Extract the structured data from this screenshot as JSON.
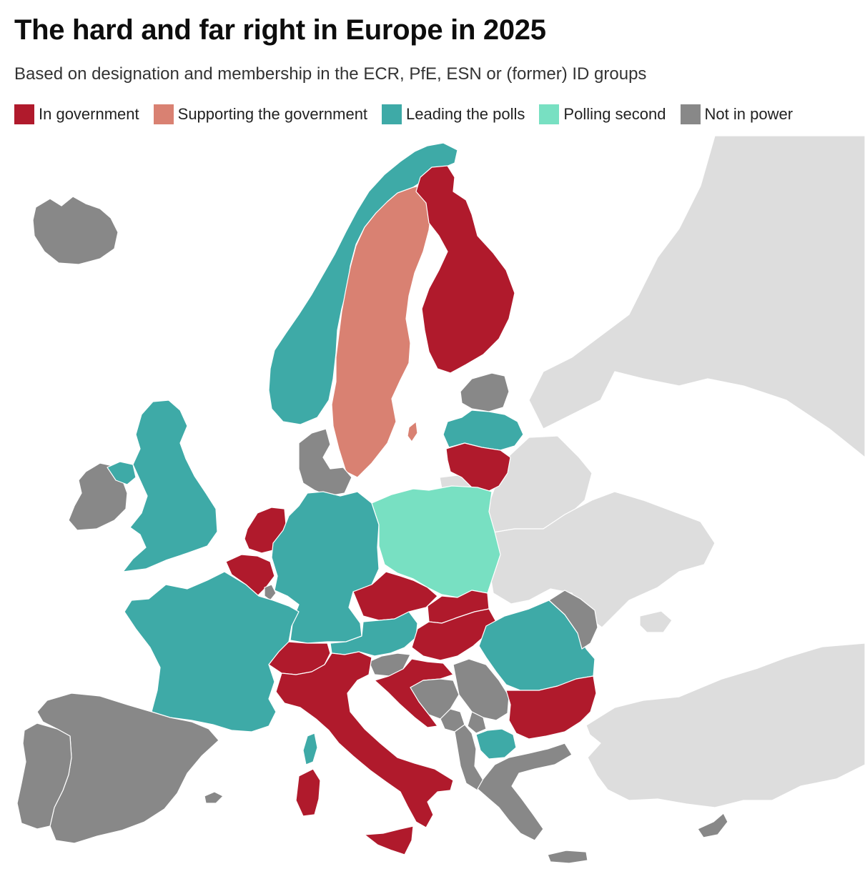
{
  "title": "The hard and far right in Europe in 2025",
  "subtitle": "Based on designation and membership in the ECR, PfE, ESN or (former) ID groups",
  "colors": {
    "in_government": "#B01A2C",
    "supporting_government": "#D98172",
    "leading_polls": "#3EAAA7",
    "polling_second": "#78E0C2",
    "not_in_power": "#888888",
    "non_eu": "#DDDDDD"
  },
  "legend": [
    {
      "key": "in_government",
      "label": "In government"
    },
    {
      "key": "supporting_government",
      "label": "Supporting the government"
    },
    {
      "key": "leading_polls",
      "label": "Leading the polls"
    },
    {
      "key": "polling_second",
      "label": "Polling second"
    },
    {
      "key": "not_in_power",
      "label": "Not in power"
    }
  ],
  "countries": [
    {
      "id": "iceland",
      "status": "not_in_power"
    },
    {
      "id": "ireland",
      "status": "not_in_power"
    },
    {
      "id": "northern-ireland",
      "status": "leading_polls"
    },
    {
      "id": "great-britain",
      "status": "leading_polls"
    },
    {
      "id": "norway",
      "status": "leading_polls"
    },
    {
      "id": "sweden",
      "status": "supporting_government"
    },
    {
      "id": "gotland",
      "status": "supporting_government"
    },
    {
      "id": "finland",
      "status": "in_government"
    },
    {
      "id": "estonia",
      "status": "not_in_power"
    },
    {
      "id": "latvia",
      "status": "leading_polls"
    },
    {
      "id": "lithuania",
      "status": "in_government"
    },
    {
      "id": "denmark",
      "status": "not_in_power"
    },
    {
      "id": "netherlands",
      "status": "in_government"
    },
    {
      "id": "belgium",
      "status": "in_government"
    },
    {
      "id": "luxembourg",
      "status": "not_in_power"
    },
    {
      "id": "germany",
      "status": "leading_polls"
    },
    {
      "id": "poland",
      "status": "polling_second"
    },
    {
      "id": "france",
      "status": "leading_polls"
    },
    {
      "id": "corsica",
      "status": "leading_polls"
    },
    {
      "id": "spain",
      "status": "not_in_power"
    },
    {
      "id": "portugal",
      "status": "not_in_power"
    },
    {
      "id": "switzerland",
      "status": "in_government"
    },
    {
      "id": "italy",
      "status": "in_government"
    },
    {
      "id": "sardinia",
      "status": "in_government"
    },
    {
      "id": "sicily",
      "status": "in_government"
    },
    {
      "id": "austria",
      "status": "leading_polls"
    },
    {
      "id": "czechia",
      "status": "in_government"
    },
    {
      "id": "slovakia",
      "status": "in_government"
    },
    {
      "id": "hungary",
      "status": "in_government"
    },
    {
      "id": "slovenia",
      "status": "not_in_power"
    },
    {
      "id": "croatia",
      "status": "in_government"
    },
    {
      "id": "bosnia",
      "status": "not_in_power"
    },
    {
      "id": "serbia",
      "status": "not_in_power"
    },
    {
      "id": "montenegro",
      "status": "not_in_power"
    },
    {
      "id": "albania",
      "status": "not_in_power"
    },
    {
      "id": "north-macedonia",
      "status": "leading_polls"
    },
    {
      "id": "kosovo",
      "status": "not_in_power"
    },
    {
      "id": "romania",
      "status": "leading_polls"
    },
    {
      "id": "moldova",
      "status": "not_in_power"
    },
    {
      "id": "bulgaria",
      "status": "in_government"
    },
    {
      "id": "greece",
      "status": "not_in_power"
    },
    {
      "id": "crete",
      "status": "not_in_power"
    },
    {
      "id": "cyprus",
      "status": "not_in_power"
    },
    {
      "id": "balearics",
      "status": "not_in_power"
    },
    {
      "id": "belarus",
      "status": "non_eu"
    },
    {
      "id": "ukraine",
      "status": "non_eu"
    },
    {
      "id": "russia-kaliningrad",
      "status": "non_eu"
    },
    {
      "id": "russia",
      "status": "non_eu"
    },
    {
      "id": "turkey",
      "status": "non_eu"
    },
    {
      "id": "crimea",
      "status": "non_eu"
    }
  ]
}
